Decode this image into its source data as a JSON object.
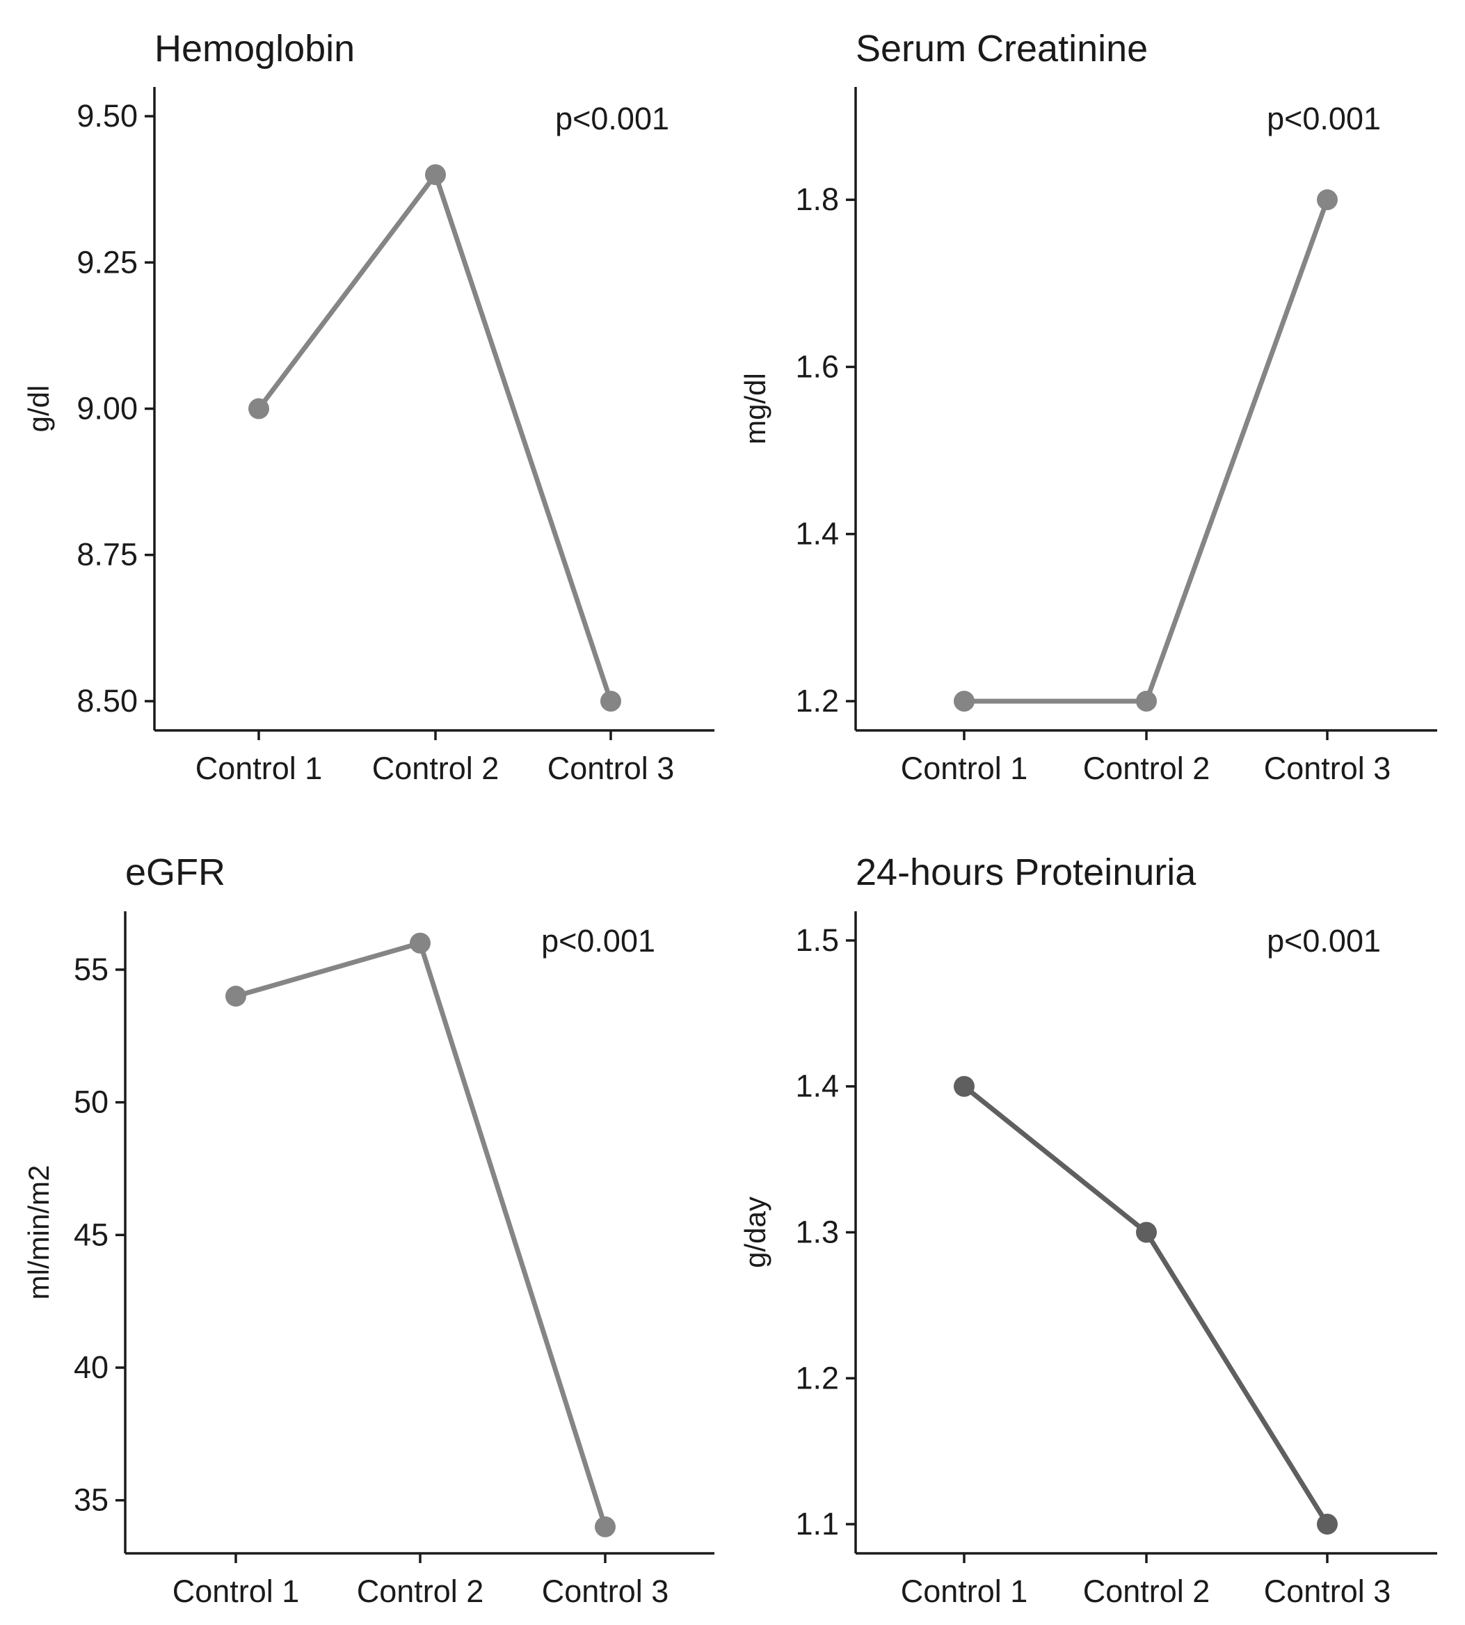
{
  "chart_data": [
    {
      "type": "line",
      "title": "Hemoglobin",
      "ylabel": "g/dl",
      "xlabel": "",
      "categories": [
        "Control 1",
        "Control 2",
        "Control 3"
      ],
      "values": [
        9.0,
        9.4,
        8.5
      ],
      "ylim": [
        8.45,
        9.55
      ],
      "yticks": [
        8.5,
        8.75,
        9.0,
        9.25,
        9.5
      ],
      "ytick_labels": [
        "8.50",
        "8.75",
        "9.00",
        "9.25",
        "9.50"
      ],
      "annotation": "p<0.001",
      "color": "#858585",
      "grid": false
    },
    {
      "type": "line",
      "title": "Serum Creatinine",
      "ylabel": "mg/dl",
      "xlabel": "",
      "categories": [
        "Control 1",
        "Control 2",
        "Control 3"
      ],
      "values": [
        1.2,
        1.2,
        1.8
      ],
      "ylim": [
        1.165,
        1.935
      ],
      "yticks": [
        1.2,
        1.4,
        1.6,
        1.8
      ],
      "ytick_labels": [
        "1.2",
        "1.4",
        "1.6",
        "1.8"
      ],
      "annotation": "p<0.001",
      "color": "#858585",
      "grid": false
    },
    {
      "type": "line",
      "title": "eGFR",
      "ylabel": "ml/min/m2",
      "xlabel": "",
      "categories": [
        "Control 1",
        "Control 2",
        "Control 3"
      ],
      "values": [
        54,
        56,
        34
      ],
      "ylim": [
        33.0,
        57.2
      ],
      "yticks": [
        35,
        40,
        45,
        50,
        55
      ],
      "ytick_labels": [
        "35",
        "40",
        "45",
        "50",
        "55"
      ],
      "annotation": "p<0.001",
      "color": "#858585",
      "grid": false
    },
    {
      "type": "line",
      "title": "24-hours Proteinuria",
      "ylabel": "g/day",
      "xlabel": "",
      "categories": [
        "Control 1",
        "Control 2",
        "Control 3"
      ],
      "values": [
        1.4,
        1.3,
        1.1
      ],
      "ylim": [
        1.08,
        1.52
      ],
      "yticks": [
        1.1,
        1.2,
        1.3,
        1.4,
        1.5
      ],
      "ytick_labels": [
        "1.1",
        "1.2",
        "1.3",
        "1.4",
        "1.5"
      ],
      "annotation": "p<0.001",
      "color": "#5f5f5f",
      "grid": false
    }
  ]
}
